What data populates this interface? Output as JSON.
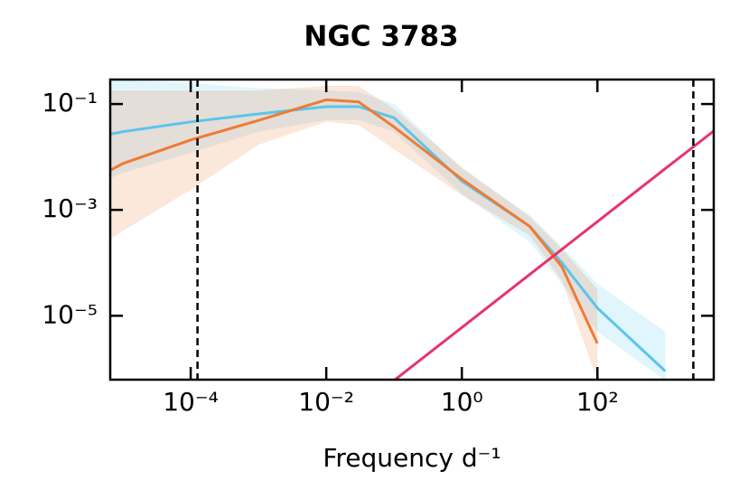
{
  "chart_data": {
    "type": "line",
    "title": "NGC 3783",
    "xlabel": "Frequency d⁻¹",
    "xscale": "log",
    "yscale": "log",
    "x": [
      6.5e-06,
      1e-05,
      0.0001,
      0.001,
      0.01,
      0.03,
      0.1,
      1,
      10,
      30,
      100,
      1000,
      5200
    ],
    "series": [
      {
        "color": "#5bc5ec",
        "values": [
          0.027,
          0.03,
          0.046,
          0.065,
          0.089,
          0.089,
          0.055,
          0.0035,
          0.00049,
          0.0001,
          1.4e-05,
          9e-07,
          null
        ],
        "lower": [
          0.004,
          0.005,
          0.012,
          0.03,
          0.05,
          0.05,
          0.03,
          0.002,
          0.00025,
          4e-05,
          5e-06,
          6e-07,
          null
        ],
        "upper": [
          0.28,
          0.28,
          0.25,
          0.2,
          0.18,
          0.17,
          0.1,
          0.006,
          0.0008,
          0.0002,
          4e-05,
          5e-06,
          null
        ]
      },
      {
        "color": "#f07a35",
        "values": [
          0.0056,
          0.0075,
          0.021,
          0.049,
          0.12,
          0.11,
          0.037,
          0.0038,
          0.00049,
          8.4e-05,
          3e-06,
          null,
          null
        ],
        "lower": [
          0.00028,
          0.0004,
          0.0024,
          0.017,
          0.046,
          0.04,
          0.014,
          0.0019,
          0.00033,
          4.6e-05,
          6e-07,
          null,
          null
        ],
        "upper": [
          0.18,
          0.18,
          0.18,
          0.18,
          0.22,
          0.22,
          0.08,
          0.0064,
          0.00074,
          0.00018,
          3.2e-05,
          6e-07,
          null
        ]
      },
      {
        "color": "#e6336f",
        "values": [
          null,
          null,
          null,
          null,
          null,
          null,
          6e-07,
          6e-06,
          6e-05,
          0.00018,
          0.0006,
          0.006,
          0.031
        ]
      }
    ],
    "vlines": [
      0.000126,
      2600
    ],
    "xlim": [
      6.5e-06,
      5200
    ],
    "ylim": [
      6.2e-07,
      0.29
    ],
    "xticks": [
      {
        "value": 0.0001,
        "label": "10⁻⁴"
      },
      {
        "value": 0.01,
        "label": "10⁻²"
      },
      {
        "value": 1,
        "label": "10⁰"
      },
      {
        "value": 100,
        "label": "10²"
      }
    ],
    "yticks": [
      {
        "value": 0.1,
        "label": "10⁻¹"
      },
      {
        "value": 0.001,
        "label": "10⁻³"
      },
      {
        "value": 1e-05,
        "label": "10⁻⁵"
      }
    ],
    "grid": false
  }
}
